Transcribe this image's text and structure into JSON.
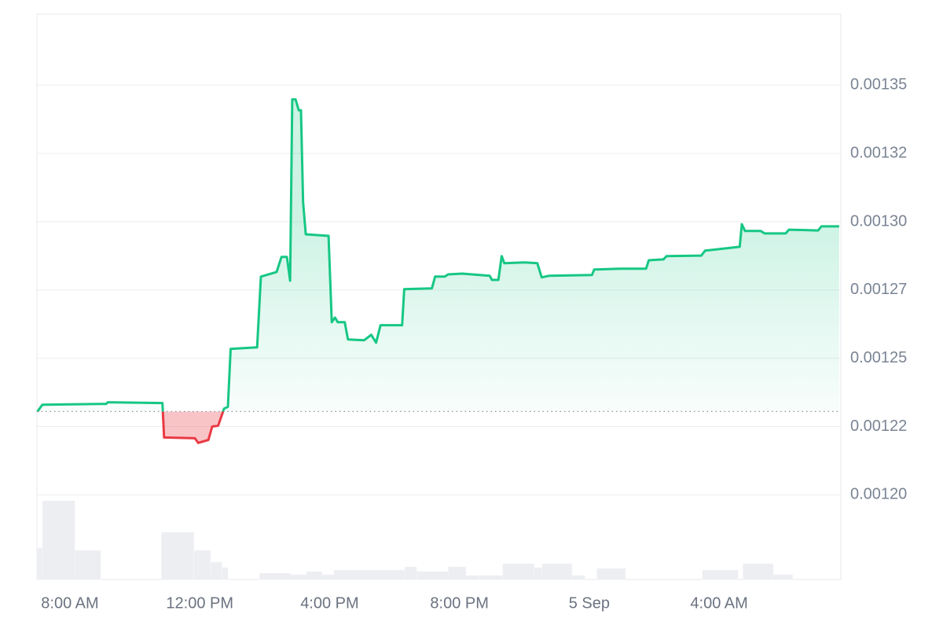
{
  "chart_data": {
    "type": "area-line",
    "x": [
      "09-04T07:00",
      "09-04T07:09",
      "09-04T09:07",
      "09-04T09:10",
      "09-04T10:51",
      "09-04T10:54",
      "09-04T11:51",
      "09-04T11:57",
      "09-04T12:16",
      "09-04T12:23",
      "09-04T12:34",
      "09-04T12:45",
      "09-04T12:52",
      "09-04T12:57",
      "09-04T13:46",
      "09-04T13:53",
      "09-04T14:22",
      "09-04T14:31",
      "09-04T14:41",
      "09-04T14:47",
      "09-04T14:51",
      "09-04T14:57",
      "09-04T15:03",
      "09-04T15:07",
      "09-04T15:11",
      "09-04T15:16",
      "09-04T15:58",
      "09-04T16:04",
      "09-04T16:10",
      "09-04T16:15",
      "09-04T16:28",
      "09-04T16:34",
      "09-04T17:04",
      "09-04T17:17",
      "09-04T17:26",
      "09-04T17:34",
      "09-04T18:14",
      "09-04T18:18",
      "09-04T19:09",
      "09-04T19:15",
      "09-04T19:33",
      "09-04T19:39",
      "09-04T20:05",
      "09-04T20:56",
      "09-04T21:00",
      "09-04T21:12",
      "09-04T21:18",
      "09-04T21:23",
      "09-04T22:01",
      "09-04T22:24",
      "09-04T22:32",
      "09-04T22:45",
      "09-05T00:05",
      "09-05T00:09",
      "09-05T00:56",
      "09-05T01:45",
      "09-05T01:50",
      "09-05T02:17",
      "09-05T02:23",
      "09-05T03:27",
      "09-05T03:34",
      "09-05T03:56",
      "09-05T04:38",
      "09-05T04:42",
      "09-05T04:48",
      "09-05T05:17",
      "09-05T05:24",
      "09-05T06:03",
      "09-05T06:09",
      "09-05T07:03",
      "09-05T07:09",
      "09-05T07:42"
    ],
    "values": [
      0.0012305,
      0.001233,
      0.0012333,
      0.0012339,
      0.0012336,
      0.001221,
      0.0012207,
      0.001219,
      0.0012201,
      0.001225,
      0.0012253,
      0.0012316,
      0.0012322,
      0.0012534,
      0.001254,
      0.0012799,
      0.0012816,
      0.0012871,
      0.0012871,
      0.0012784,
      0.0013448,
      0.0013448,
      0.0013408,
      0.0013408,
      0.0013072,
      0.0012954,
      0.0012948,
      0.0012632,
      0.0012649,
      0.0012632,
      0.0012632,
      0.0012569,
      0.0012566,
      0.0012586,
      0.0012557,
      0.0012621,
      0.0012621,
      0.0012753,
      0.0012756,
      0.0012799,
      0.0012799,
      0.0012807,
      0.001281,
      0.0012802,
      0.0012787,
      0.0012787,
      0.0012874,
      0.0012848,
      0.0012851,
      0.0012848,
      0.0012796,
      0.0012802,
      0.0012805,
      0.0012825,
      0.0012828,
      0.0012828,
      0.0012859,
      0.0012862,
      0.0012874,
      0.0012876,
      0.0012894,
      0.0012899,
      0.0012908,
      0.0012991,
      0.0012966,
      0.0012966,
      0.0012957,
      0.0012957,
      0.0012971,
      0.0012968,
      0.0012983,
      0.0012983
    ],
    "baseline": 0.0012305,
    "up_color": "#16c784",
    "down_color": "#ea3943",
    "volume": {
      "bins": [
        "09-04T07:00",
        "09-04T07:09",
        "09-04T08:09",
        "09-04T08:57",
        "09-04T10:49",
        "09-04T11:49",
        "09-04T12:20",
        "09-04T12:41",
        "09-04T12:52",
        "09-04T13:50",
        "09-04T14:48",
        "09-04T15:17",
        "09-04T15:46",
        "09-04T16:08",
        "09-04T18:19",
        "09-04T18:41",
        "09-04T19:39",
        "09-04T20:12",
        "09-04T20:37",
        "09-04T21:20",
        "09-04T22:18",
        "09-04T22:33",
        "09-04T23:28",
        "09-04T23:52",
        "09-05T00:14",
        "09-05T01:07",
        "09-05T03:29",
        "09-05T04:35",
        "09-05T04:44",
        "09-05T05:40",
        "09-05T06:16"
      ],
      "values": [
        40,
        100,
        37,
        0,
        60,
        37,
        22,
        15,
        0,
        8,
        6,
        10,
        6,
        12,
        16,
        10,
        16,
        5,
        5,
        20,
        15,
        20,
        5,
        0,
        14,
        0,
        12,
        0,
        20,
        6
      ],
      "color": "#eceef2"
    },
    "xlim": [
      "09-04T06:59",
      "09-05T07:45"
    ],
    "xticks": [
      {
        "value": "09-04T08:00",
        "label": "8:00 AM"
      },
      {
        "value": "09-04T12:00",
        "label": "12:00 PM"
      },
      {
        "value": "09-04T16:00",
        "label": "4:00 PM"
      },
      {
        "value": "09-04T20:00",
        "label": "8:00 PM"
      },
      {
        "value": "09-05T00:00",
        "label": "5 Sep"
      },
      {
        "value": "09-05T04:00",
        "label": "4:00 AM"
      }
    ],
    "ylim": [
      0.001169,
      0.001376
    ],
    "yticks": [
      {
        "value": 0.0012,
        "label": "0.00120"
      },
      {
        "value": 0.001225,
        "label": "0.00122"
      },
      {
        "value": 0.00125,
        "label": "0.00125"
      },
      {
        "value": 0.001275,
        "label": "0.00127"
      },
      {
        "value": 0.0013,
        "label": "0.00130"
      },
      {
        "value": 0.001325,
        "label": "0.00132"
      },
      {
        "value": 0.00135,
        "label": "0.00135"
      }
    ],
    "grid": true
  }
}
